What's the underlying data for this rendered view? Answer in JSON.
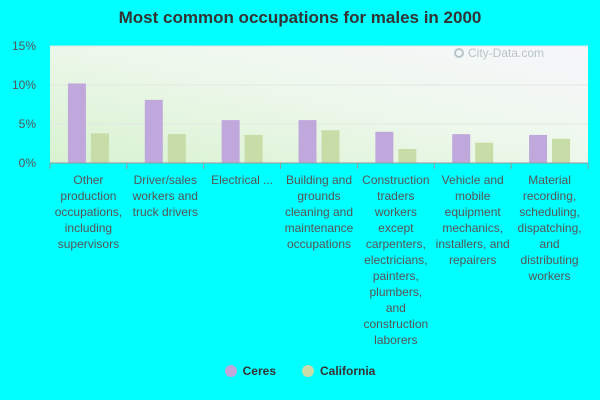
{
  "chart_data": {
    "type": "bar",
    "title": "Most common occupations for males in 2000",
    "categories": [
      "Other production occupations, including supervisors",
      "Driver/sales workers and truck drivers",
      "Electrical ...",
      "Building and grounds cleaning and maintenance occupations",
      "Construction traders workers except carpenters, electricians, painters, plumbers, and construction laborers",
      "Vehicle and mobile equipment mechanics, installers, and repairers",
      "Material recording, scheduling, dispatching, and distributing workers"
    ],
    "series": [
      {
        "name": "Ceres",
        "color": "#c0a8dc",
        "values": [
          10.2,
          8.1,
          5.5,
          5.5,
          4.0,
          3.7,
          3.6
        ]
      },
      {
        "name": "California",
        "color": "#c8dca8",
        "values": [
          3.8,
          3.7,
          3.6,
          4.2,
          1.8,
          2.6,
          3.1
        ]
      }
    ],
    "yticks": [
      "0%",
      "5%",
      "10%",
      "15%"
    ],
    "ylim": [
      0,
      15
    ],
    "grid": true,
    "legend_position": "bottom"
  },
  "watermark": "City-Data.com"
}
